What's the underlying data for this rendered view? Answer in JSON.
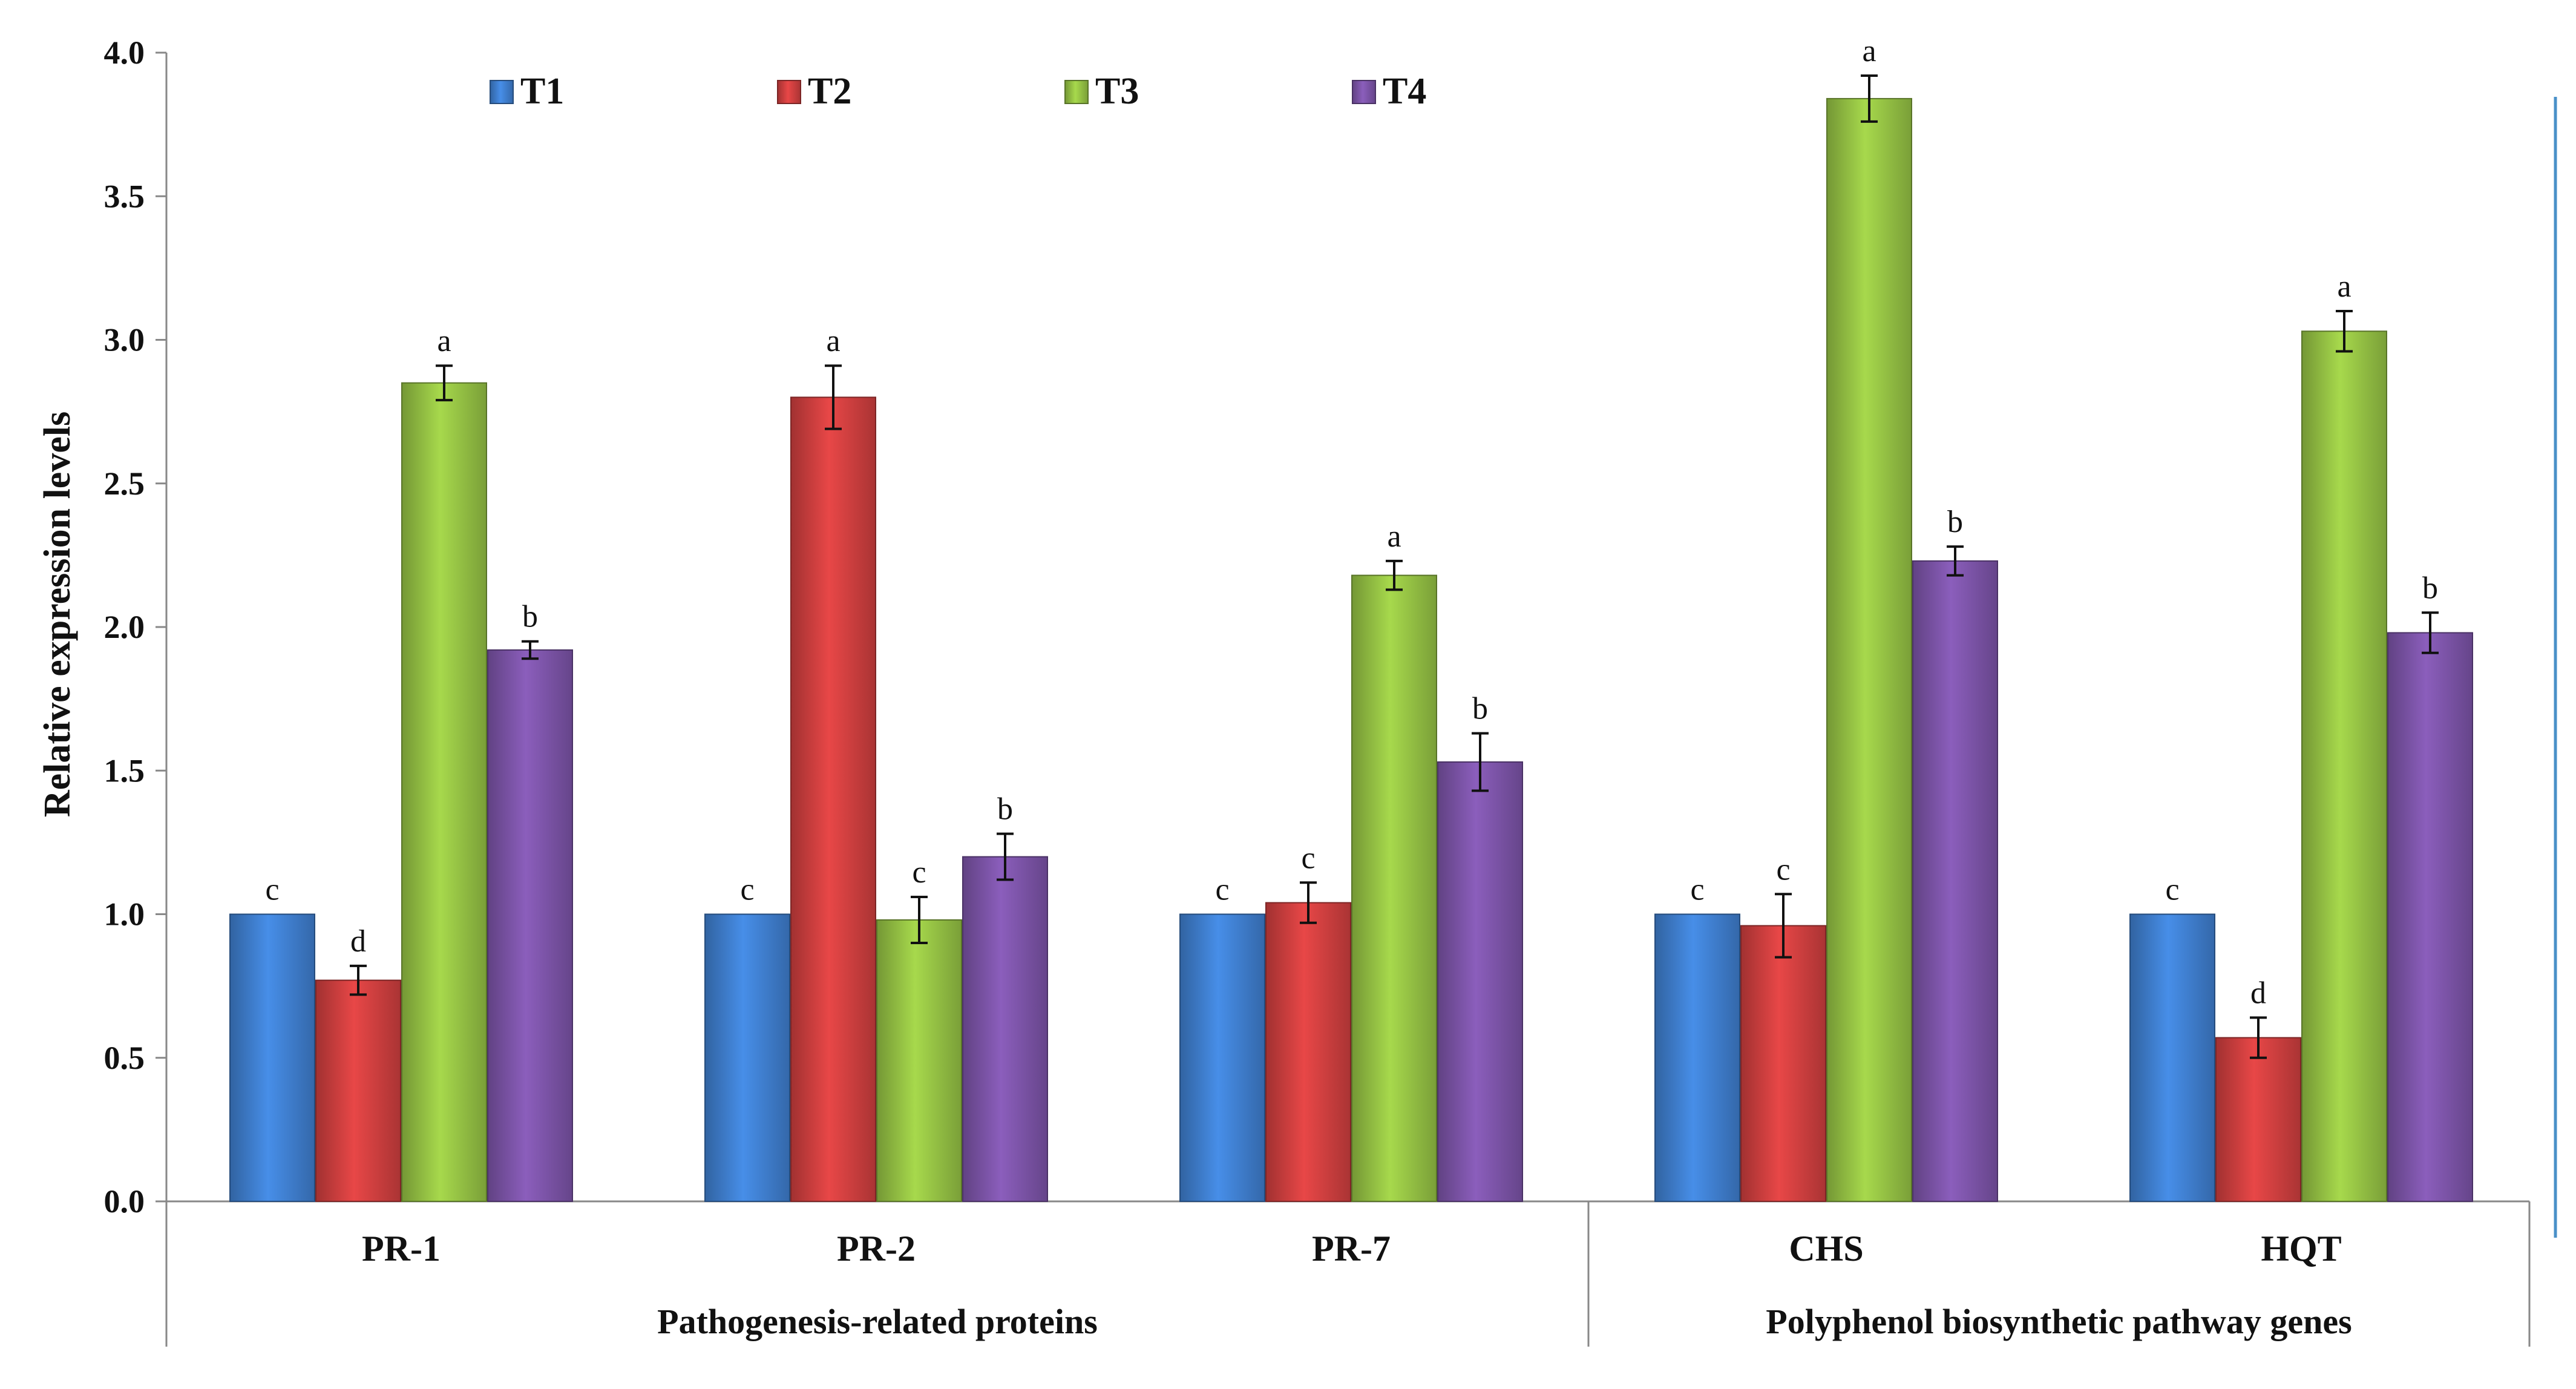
{
  "chart_data": {
    "type": "bar",
    "ylabel": "Relative expression levels",
    "ylim": [
      0,
      4.0
    ],
    "yticks": [
      "0.0",
      "0.5",
      "1.0",
      "1.5",
      "2.0",
      "2.5",
      "3.0",
      "3.5",
      "4.0"
    ],
    "categories": [
      "PR-1",
      "PR-2",
      "PR-7",
      "CHS",
      "HQT"
    ],
    "groups": [
      {
        "label": "Pathogenesis-related proteins",
        "categories": [
          "PR-1",
          "PR-2",
          "PR-7"
        ]
      },
      {
        "label": "Polyphenol biosynthetic pathway genes",
        "categories": [
          "CHS",
          "HQT"
        ]
      }
    ],
    "series": [
      {
        "name": "T1",
        "color": "#3F7FCF",
        "values": [
          1.0,
          1.0,
          1.0,
          1.0,
          1.0
        ],
        "errors": [
          0.0,
          0.0,
          0.0,
          0.0,
          0.0
        ],
        "letters": [
          "c",
          "c",
          "c",
          "c",
          "c"
        ]
      },
      {
        "name": "T2",
        "color": "#CF3F3F",
        "values": [
          0.77,
          2.8,
          1.04,
          0.96,
          0.57
        ],
        "errors": [
          0.05,
          0.11,
          0.07,
          0.11,
          0.07
        ],
        "letters": [
          "d",
          "a",
          "c",
          "c",
          "d"
        ]
      },
      {
        "name": "T3",
        "color": "#95C244",
        "values": [
          2.85,
          0.98,
          2.18,
          3.84,
          3.03
        ],
        "errors": [
          0.06,
          0.08,
          0.05,
          0.08,
          0.07
        ],
        "letters": [
          "a",
          "c",
          "a",
          "a",
          "a"
        ]
      },
      {
        "name": "T4",
        "color": "#7C54A8",
        "values": [
          1.92,
          1.2,
          1.53,
          2.23,
          1.98
        ],
        "errors": [
          0.03,
          0.08,
          0.1,
          0.05,
          0.07
        ],
        "letters": [
          "b",
          "b",
          "b",
          "b",
          "b"
        ]
      }
    ]
  }
}
